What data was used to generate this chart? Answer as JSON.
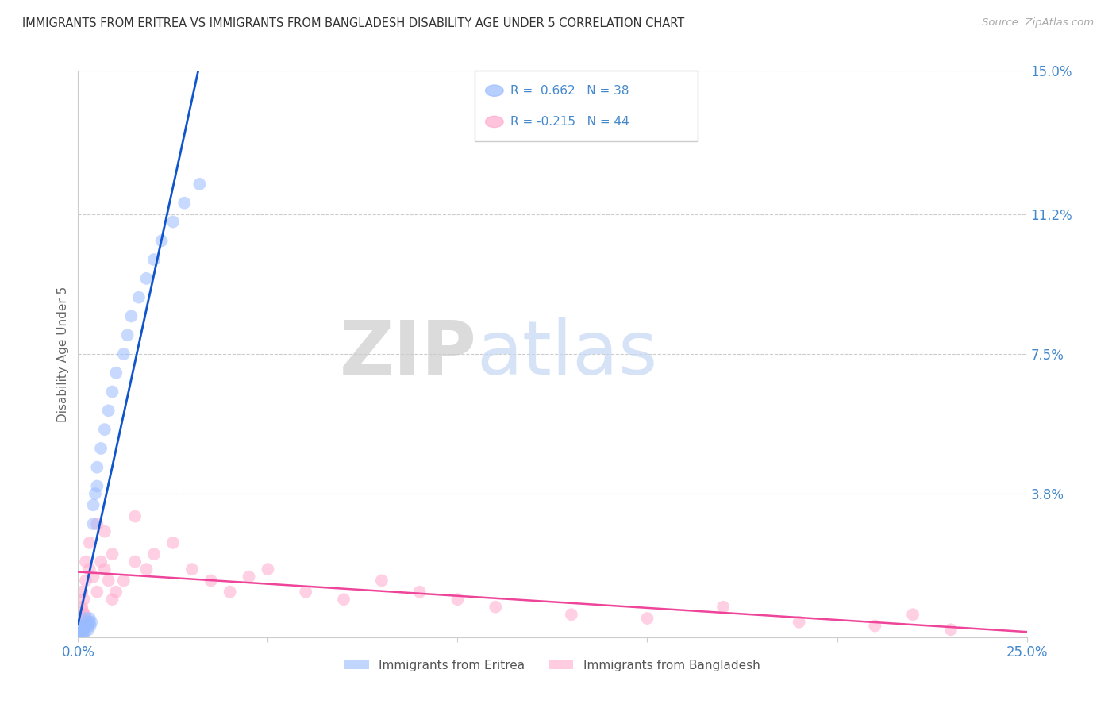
{
  "title": "IMMIGRANTS FROM ERITREA VS IMMIGRANTS FROM BANGLADESH DISABILITY AGE UNDER 5 CORRELATION CHART",
  "source": "Source: ZipAtlas.com",
  "ylabel": "Disability Age Under 5",
  "xlim": [
    0.0,
    0.25
  ],
  "ylim": [
    0.0,
    0.15
  ],
  "ytick_positions": [
    0.0,
    0.038,
    0.075,
    0.112,
    0.15
  ],
  "yticklabels": [
    "",
    "3.8%",
    "7.5%",
    "11.2%",
    "15.0%"
  ],
  "xticklabels_show": [
    "0.0%",
    "25.0%"
  ],
  "background_color": "#ffffff",
  "grid_color": "#cccccc",
  "eritrea_color": "#99bbff",
  "bangladesh_color": "#ffaacc",
  "eritrea_line_color": "#1155cc",
  "bangladesh_line_color": "#ee4499",
  "eritrea_dash_color": "#aaccff",
  "eritrea_label": "Immigrants from Eritrea",
  "bangladesh_label": "Immigrants from Bangladesh",
  "tick_color": "#4488cc",
  "eritrea_x": [
    0.0008,
    0.0009,
    0.001,
    0.001,
    0.0012,
    0.0013,
    0.0015,
    0.0016,
    0.0017,
    0.002,
    0.002,
    0.0022,
    0.0025,
    0.0027,
    0.003,
    0.003,
    0.0032,
    0.0035,
    0.004,
    0.004,
    0.0045,
    0.005,
    0.005,
    0.006,
    0.007,
    0.008,
    0.009,
    0.01,
    0.012,
    0.013,
    0.014,
    0.016,
    0.018,
    0.02,
    0.022,
    0.025,
    0.028,
    0.032
  ],
  "eritrea_y": [
    0.001,
    0.0,
    0.003,
    0.001,
    0.002,
    0.001,
    0.003,
    0.002,
    0.001,
    0.005,
    0.003,
    0.004,
    0.003,
    0.002,
    0.004,
    0.005,
    0.003,
    0.004,
    0.03,
    0.035,
    0.038,
    0.04,
    0.045,
    0.05,
    0.055,
    0.06,
    0.065,
    0.07,
    0.075,
    0.08,
    0.085,
    0.09,
    0.095,
    0.1,
    0.105,
    0.11,
    0.115,
    0.12
  ],
  "bangladesh_x": [
    0.0008,
    0.001,
    0.001,
    0.0012,
    0.0015,
    0.0018,
    0.002,
    0.002,
    0.003,
    0.003,
    0.004,
    0.005,
    0.006,
    0.007,
    0.008,
    0.009,
    0.01,
    0.012,
    0.015,
    0.018,
    0.02,
    0.025,
    0.03,
    0.035,
    0.04,
    0.045,
    0.05,
    0.06,
    0.07,
    0.08,
    0.09,
    0.1,
    0.11,
    0.13,
    0.15,
    0.17,
    0.19,
    0.21,
    0.22,
    0.23,
    0.005,
    0.007,
    0.009,
    0.015
  ],
  "bangladesh_y": [
    0.005,
    0.008,
    0.012,
    0.007,
    0.01,
    0.006,
    0.015,
    0.02,
    0.018,
    0.025,
    0.016,
    0.012,
    0.02,
    0.018,
    0.015,
    0.01,
    0.012,
    0.015,
    0.02,
    0.018,
    0.022,
    0.025,
    0.018,
    0.015,
    0.012,
    0.016,
    0.018,
    0.012,
    0.01,
    0.015,
    0.012,
    0.01,
    0.008,
    0.006,
    0.005,
    0.008,
    0.004,
    0.003,
    0.006,
    0.002,
    0.03,
    0.028,
    0.022,
    0.032
  ]
}
